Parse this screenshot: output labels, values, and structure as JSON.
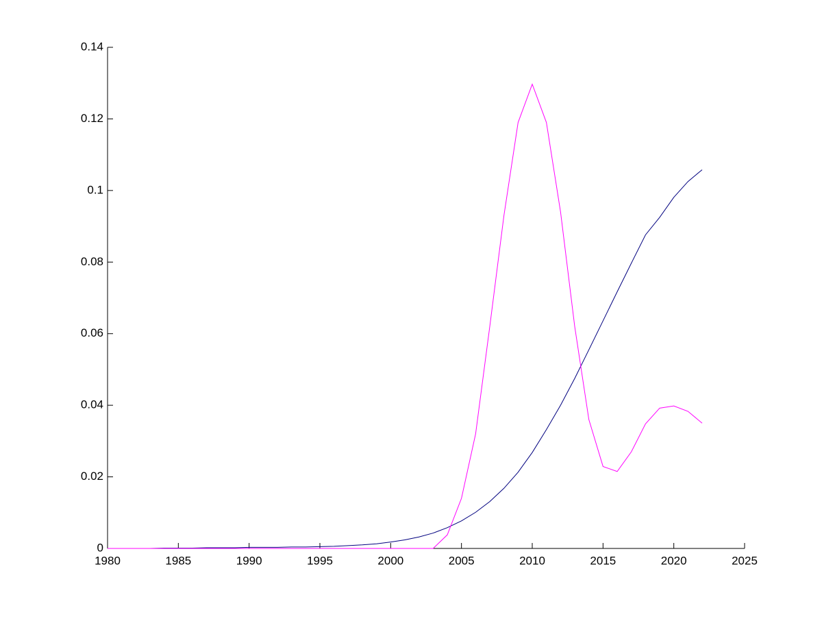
{
  "chart_data": {
    "type": "line",
    "x": [
      1980,
      1981,
      1982,
      1983,
      1984,
      1985,
      1986,
      1987,
      1988,
      1989,
      1990,
      1991,
      1992,
      1993,
      1994,
      1995,
      1996,
      1997,
      1998,
      1999,
      2000,
      2001,
      2002,
      2003,
      2004,
      2005,
      2006,
      2007,
      2008,
      2009,
      2010,
      2011,
      2012,
      2013,
      2014,
      2015,
      2016,
      2017,
      2018,
      2019,
      2020,
      2021,
      2022
    ],
    "series": [
      {
        "color": "#00007f",
        "values": [
          0,
          0,
          0,
          0,
          0.0001,
          0.0001,
          0.0001,
          0.0002,
          0.0002,
          0.0002,
          0.0003,
          0.0003,
          0.0003,
          0.0004,
          0.0004,
          0.0005,
          0.0006,
          0.0008,
          0.001,
          0.0013,
          0.0018,
          0.0024,
          0.0032,
          0.0043,
          0.0058,
          0.0077,
          0.0101,
          0.0131,
          0.0168,
          0.0213,
          0.0268,
          0.0332,
          0.04,
          0.0475,
          0.0555,
          0.0636,
          0.0717,
          0.0797,
          0.0876,
          0.0925,
          0.0981,
          0.1025,
          0.1058
        ]
      },
      {
        "color": "#ff00ff",
        "values": [
          0,
          0,
          0,
          0,
          0,
          0,
          0,
          0,
          0,
          0,
          0,
          0,
          0,
          0,
          0,
          0,
          0,
          0,
          0,
          0,
          0,
          0,
          0,
          0,
          0.0038,
          0.014,
          0.032,
          0.062,
          0.093,
          0.119,
          0.1297,
          0.119,
          0.094,
          0.062,
          0.036,
          0.0229,
          0.0215,
          0.027,
          0.0348,
          0.0392,
          0.0398,
          0.0383,
          0.035
        ]
      }
    ],
    "xlim": [
      1980,
      2025
    ],
    "xticks": [
      1980,
      1985,
      1990,
      1995,
      2000,
      2005,
      2010,
      2015,
      2020,
      2025
    ],
    "ylim": [
      0,
      0.14
    ],
    "yticks": [
      0,
      0.02,
      0.04,
      0.06,
      0.08,
      0.1,
      0.12,
      0.14
    ]
  }
}
